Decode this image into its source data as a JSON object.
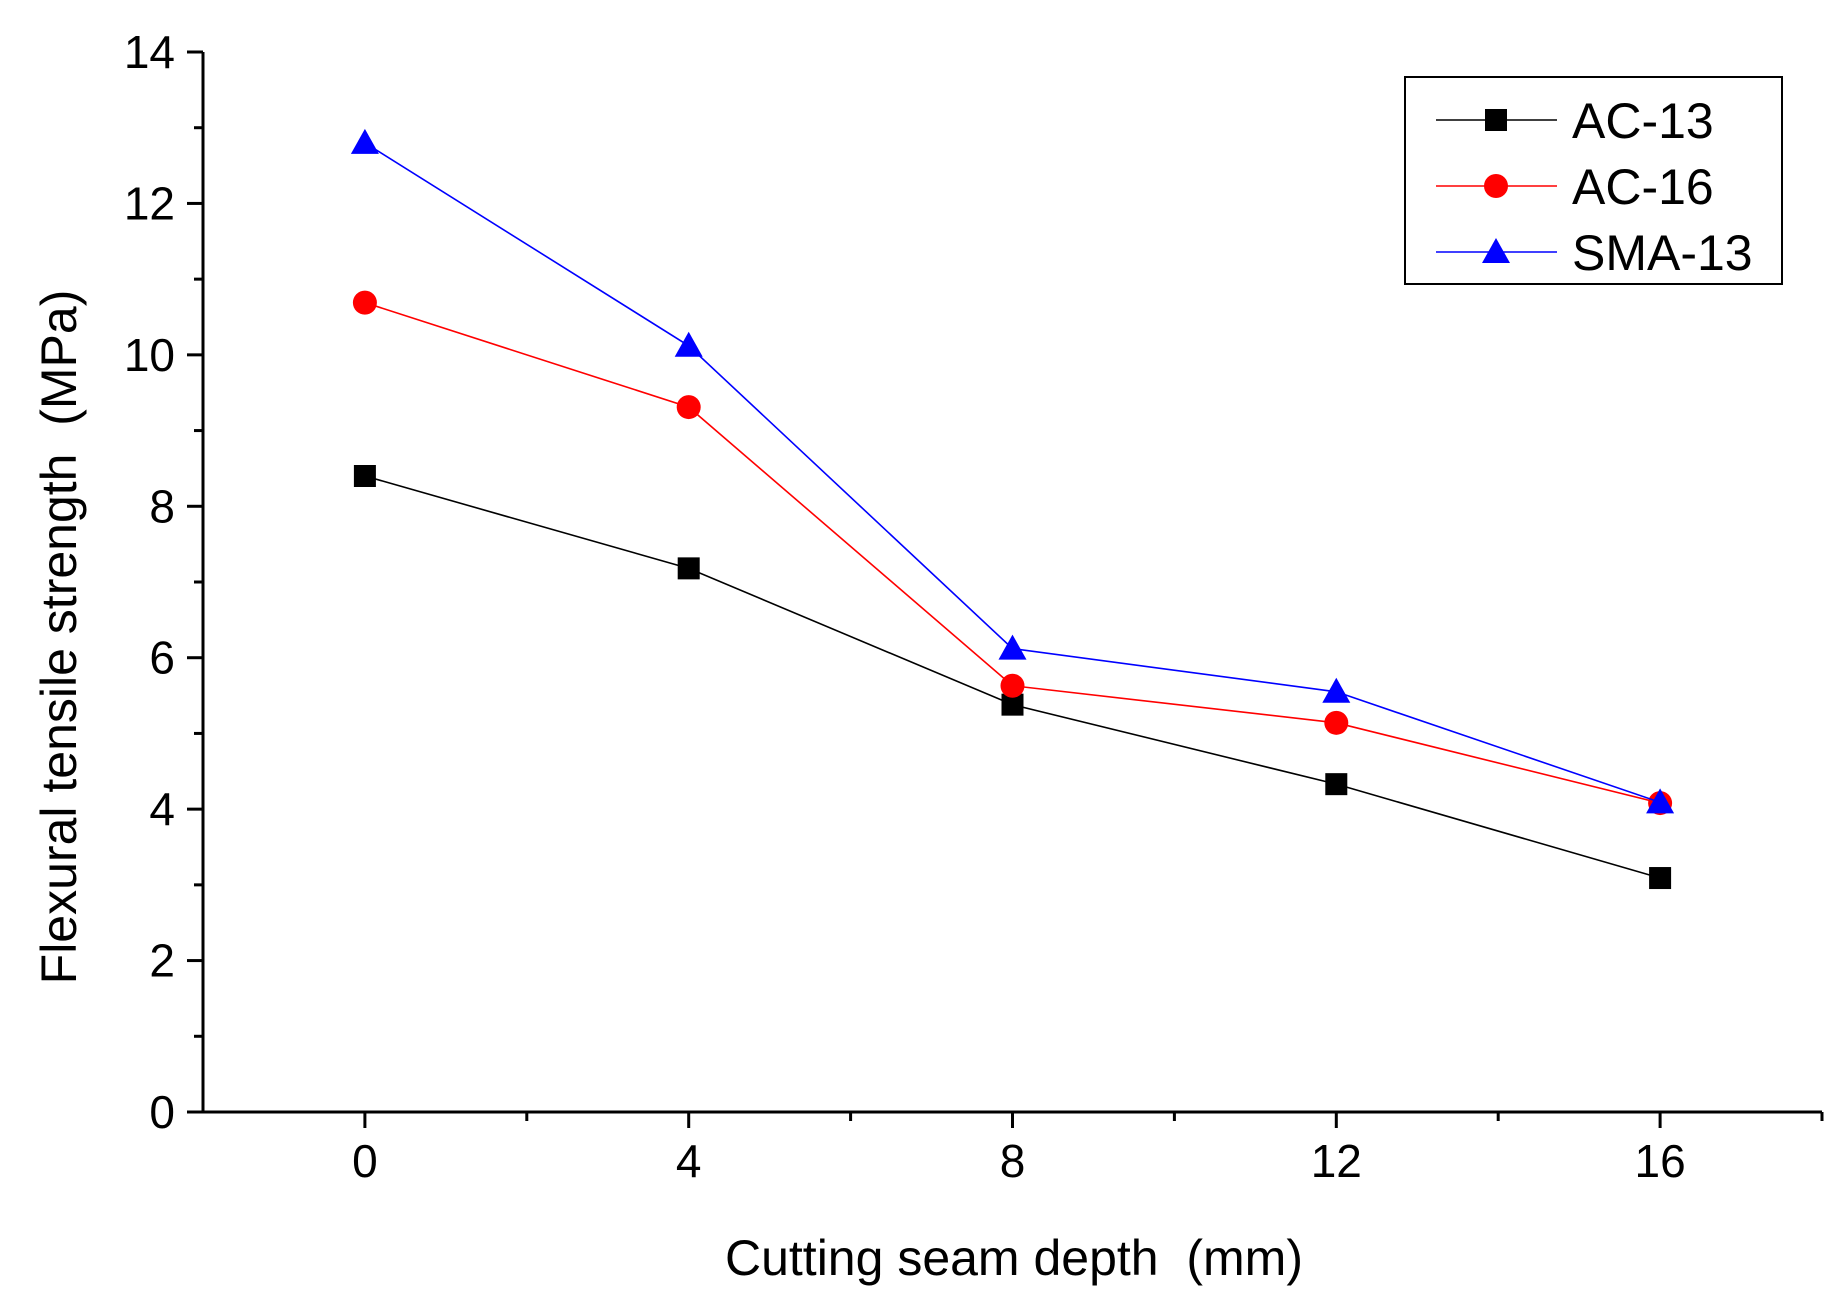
{
  "chart_data": {
    "type": "line",
    "title": "",
    "xlabel": "Cutting seam depth  (mm)",
    "ylabel": "Flexural tensile strength  (MPa)",
    "xlim": [
      -2.0,
      18.0
    ],
    "ylim": [
      0,
      14
    ],
    "xticks": [
      0,
      4,
      8,
      12,
      16
    ],
    "xtick_labels": [
      "0",
      "4",
      "8",
      "12",
      "16"
    ],
    "xminor": [
      2,
      6,
      10,
      14,
      18
    ],
    "yticks": [
      0,
      2,
      4,
      6,
      8,
      10,
      12,
      14
    ],
    "ytick_labels": [
      "0",
      "2",
      "4",
      "6",
      "8",
      "10",
      "12",
      "14"
    ],
    "yminor": [
      1,
      3,
      5,
      7,
      9,
      11,
      13
    ],
    "grid": false,
    "legend_position": "top-right",
    "x": [
      0,
      4,
      8,
      12,
      16
    ],
    "series": [
      {
        "name": "AC-13",
        "values": [
          8.4,
          7.18,
          5.38,
          4.33,
          3.09
        ],
        "color": "#000000",
        "marker": "square"
      },
      {
        "name": "AC-16",
        "values": [
          10.69,
          9.31,
          5.63,
          5.14,
          4.08
        ],
        "color": "#ff0000",
        "marker": "circle"
      },
      {
        "name": "SMA-13",
        "values": [
          12.8,
          10.12,
          6.12,
          5.55,
          4.09
        ],
        "color": "#0000ff",
        "marker": "triangle"
      }
    ]
  }
}
